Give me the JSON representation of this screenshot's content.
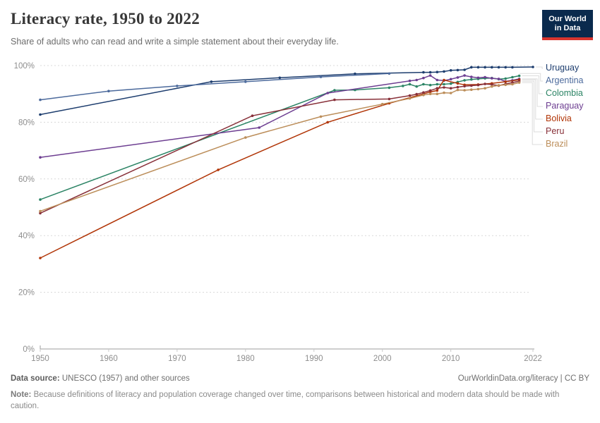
{
  "header": {
    "title": "Literacy rate, 1950 to 2022",
    "subtitle": "Share of adults who can read and write a simple statement about their everyday life."
  },
  "logo": {
    "line1": "Our World",
    "line2": "in Data",
    "bg_color": "#0a2a4d",
    "bar_color": "#d8352e",
    "text_color": "#ffffff"
  },
  "chart_data": {
    "type": "line",
    "title": "Literacy rate, 1950 to 2022",
    "xlabel": "",
    "ylabel": "",
    "xlim": [
      1950,
      2022
    ],
    "ylim": [
      0,
      100
    ],
    "x_ticks": [
      1950,
      1960,
      1970,
      1980,
      1990,
      2000,
      2010,
      2022
    ],
    "y_ticks": [
      0,
      20,
      40,
      60,
      80,
      100
    ],
    "y_tick_suffix": "%",
    "grid": "horizontal-dashed",
    "legend_position": "right",
    "axis_color": "#9c9c9c",
    "grid_color": "#d8d8d8",
    "tick_label_color": "#8e8e8e",
    "connector_color": "#dcdcdc",
    "series": [
      {
        "name": "Uruguay",
        "color": "#1d3d6e",
        "points": [
          [
            1950,
            82.7
          ],
          [
            1975,
            94.3
          ],
          [
            1985,
            95.7
          ],
          [
            1996,
            97.1
          ],
          [
            2006,
            97.6
          ],
          [
            2007,
            97.6
          ],
          [
            2008,
            97.7
          ],
          [
            2009,
            97.9
          ],
          [
            2010,
            98.3
          ],
          [
            2011,
            98.4
          ],
          [
            2012,
            98.5
          ],
          [
            2013,
            99.4
          ],
          [
            2014,
            99.4
          ],
          [
            2015,
            99.4
          ],
          [
            2016,
            99.4
          ],
          [
            2017,
            99.4
          ],
          [
            2018,
            99.4
          ],
          [
            2019,
            99.4
          ],
          [
            2022,
            99.5
          ]
        ]
      },
      {
        "name": "Argentina",
        "color": "#4c6a9c",
        "points": [
          [
            1950,
            87.9
          ],
          [
            1960,
            91.0
          ],
          [
            1970,
            92.8
          ],
          [
            1980,
            94.3
          ],
          [
            1991,
            96.0
          ],
          [
            2001,
            97.2
          ]
        ]
      },
      {
        "name": "Colombia",
        "color": "#2c8465",
        "points": [
          [
            1950,
            52.7
          ],
          [
            1993,
            91.3
          ],
          [
            1996,
            91.4
          ],
          [
            2001,
            92.2
          ],
          [
            2003,
            92.8
          ],
          [
            2004,
            93.4
          ],
          [
            2005,
            92.6
          ],
          [
            2006,
            93.4
          ],
          [
            2007,
            93.1
          ],
          [
            2008,
            93.4
          ],
          [
            2009,
            93.4
          ],
          [
            2010,
            93.6
          ],
          [
            2011,
            94.2
          ],
          [
            2012,
            94.8
          ],
          [
            2013,
            95.1
          ],
          [
            2014,
            95.3
          ],
          [
            2015,
            95.5
          ],
          [
            2016,
            95.6
          ],
          [
            2017,
            95.2
          ],
          [
            2018,
            95.4
          ],
          [
            2019,
            95.9
          ],
          [
            2020,
            96.4
          ]
        ]
      },
      {
        "name": "Paraguay",
        "color": "#6d3e91",
        "points": [
          [
            1950,
            67.6
          ],
          [
            1982,
            78.1
          ],
          [
            1992,
            90.3
          ],
          [
            2004,
            94.6
          ],
          [
            2005,
            94.9
          ],
          [
            2006,
            95.6
          ],
          [
            2007,
            96.5
          ],
          [
            2008,
            94.9
          ],
          [
            2009,
            94.7
          ],
          [
            2010,
            95.2
          ],
          [
            2011,
            95.8
          ],
          [
            2012,
            96.5
          ],
          [
            2013,
            96.0
          ],
          [
            2014,
            95.7
          ],
          [
            2015,
            95.9
          ],
          [
            2016,
            95.5
          ],
          [
            2017,
            95.3
          ],
          [
            2018,
            94.4
          ],
          [
            2019,
            94.8
          ],
          [
            2020,
            95.3
          ]
        ]
      },
      {
        "name": "Bolivia",
        "color": "#b13507",
        "points": [
          [
            1950,
            32.1
          ],
          [
            1976,
            63.2
          ],
          [
            1992,
            80.0
          ],
          [
            2001,
            86.7
          ],
          [
            2006,
            90.0
          ],
          [
            2007,
            90.7
          ],
          [
            2008,
            91.2
          ],
          [
            2009,
            94.9
          ],
          [
            2011,
            93.7
          ],
          [
            2012,
            93.2
          ],
          [
            2014,
            93.3
          ],
          [
            2016,
            93.7
          ],
          [
            2018,
            94.3
          ],
          [
            2020,
            95.0
          ]
        ]
      },
      {
        "name": "Peru",
        "color": "#883039",
        "points": [
          [
            1950,
            47.9
          ],
          [
            1981,
            82.3
          ],
          [
            1993,
            87.9
          ],
          [
            2001,
            88.2
          ],
          [
            2004,
            89.4
          ],
          [
            2005,
            89.9
          ],
          [
            2006,
            90.5
          ],
          [
            2007,
            91.2
          ],
          [
            2008,
            92.0
          ],
          [
            2009,
            92.3
          ],
          [
            2010,
            92.0
          ],
          [
            2011,
            92.4
          ],
          [
            2012,
            92.7
          ],
          [
            2013,
            92.9
          ],
          [
            2014,
            93.1
          ],
          [
            2015,
            93.5
          ],
          [
            2016,
            93.3
          ],
          [
            2017,
            92.9
          ],
          [
            2018,
            93.5
          ],
          [
            2019,
            94.0
          ],
          [
            2020,
            94.5
          ]
        ]
      },
      {
        "name": "Brazil",
        "color": "#bc8e5a",
        "points": [
          [
            1950,
            48.6
          ],
          [
            1980,
            74.6
          ],
          [
            1991,
            82.0
          ],
          [
            2000,
            86.4
          ],
          [
            2004,
            88.4
          ],
          [
            2006,
            89.6
          ],
          [
            2007,
            90.0
          ],
          [
            2008,
            90.0
          ],
          [
            2009,
            90.4
          ],
          [
            2010,
            90.3
          ],
          [
            2011,
            91.4
          ],
          [
            2012,
            91.3
          ],
          [
            2013,
            91.5
          ],
          [
            2014,
            91.7
          ],
          [
            2015,
            92.0
          ],
          [
            2016,
            92.6
          ],
          [
            2017,
            93.0
          ],
          [
            2018,
            93.2
          ],
          [
            2019,
            93.4
          ],
          [
            2020,
            94.0
          ]
        ]
      }
    ]
  },
  "footer": {
    "source_label": "Data source:",
    "source_text": "UNESCO (1957) and other sources",
    "link": "OurWorldinData.org/literacy | CC BY",
    "note_label": "Note:",
    "note_text": "Because definitions of literacy and population coverage changed over time, comparisons between historical and modern data should be made with caution."
  }
}
